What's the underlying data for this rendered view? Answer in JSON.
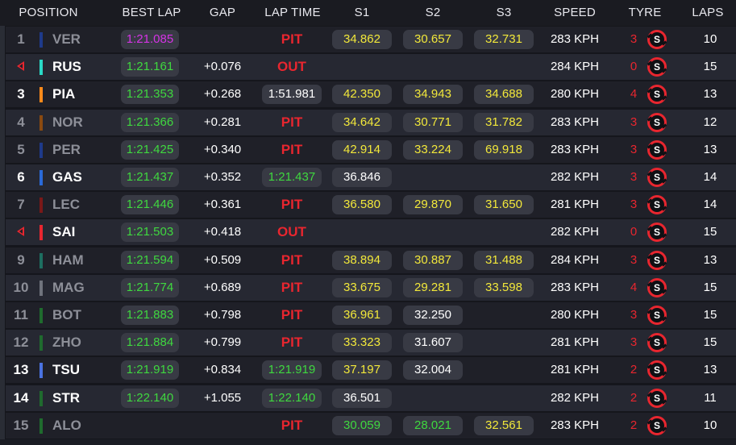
{
  "headers": {
    "position": "POSITION",
    "best_lap": "BEST LAP",
    "gap": "GAP",
    "lap_time": "LAP TIME",
    "s1": "S1",
    "s2": "S2",
    "s3": "S3",
    "speed": "SPEED",
    "tyre": "TYRE",
    "laps": "LAPS"
  },
  "colors": {
    "purple": "#d633e6",
    "green": "#3fd83f",
    "yellow": "#f2e83a",
    "white": "#ffffff",
    "red": "#e8262f",
    "dim": "#8d8f98"
  },
  "rows": [
    {
      "pos": "1",
      "marker": "bar",
      "team_color": "#1e3a8a",
      "driver": "VER",
      "dim": true,
      "best": "1:21.085",
      "best_c": "purple",
      "gap": "",
      "lap": "PIT",
      "lap_kind": "pit",
      "s1": "34.862",
      "s1_c": "yellow",
      "s2": "30.657",
      "s2_c": "yellow",
      "s3": "32.731",
      "s3_c": "yellow",
      "speed": "283 KPH",
      "tyre_age": "3",
      "tyre": "S",
      "laps": "10"
    },
    {
      "pos": "",
      "marker": "arrow",
      "team_color": "#2ad9c6",
      "driver": "RUS",
      "dim": false,
      "best": "1:21.161",
      "best_c": "green",
      "gap": "+0.076",
      "lap": "OUT",
      "lap_kind": "pit",
      "s1": "",
      "s1_c": "white",
      "s2": "",
      "s2_c": "white",
      "s3": "",
      "s3_c": "white",
      "speed": "284 KPH",
      "tyre_age": "0",
      "tyre": "S",
      "laps": "15"
    },
    {
      "pos": "3",
      "marker": "bar",
      "team_color": "#ff8a1a",
      "driver": "PIA",
      "dim": false,
      "best": "1:21.353",
      "best_c": "green",
      "gap": "+0.268",
      "lap": "1:51.981",
      "lap_kind": "white",
      "s1": "42.350",
      "s1_c": "yellow",
      "s2": "34.943",
      "s2_c": "yellow",
      "s3": "34.688",
      "s3_c": "yellow",
      "speed": "280 KPH",
      "tyre_age": "4",
      "tyre": "S",
      "laps": "13"
    },
    {
      "pos": "4",
      "marker": "bar",
      "team_color": "#8a4a10",
      "driver": "NOR",
      "dim": true,
      "best": "1:21.366",
      "best_c": "green",
      "gap": "+0.281",
      "lap": "PIT",
      "lap_kind": "pit",
      "s1": "34.642",
      "s1_c": "yellow",
      "s2": "30.771",
      "s2_c": "yellow",
      "s3": "31.782",
      "s3_c": "yellow",
      "speed": "283 KPH",
      "tyre_age": "3",
      "tyre": "S",
      "laps": "12"
    },
    {
      "pos": "5",
      "marker": "bar",
      "team_color": "#1e3a8a",
      "driver": "PER",
      "dim": true,
      "best": "1:21.425",
      "best_c": "green",
      "gap": "+0.340",
      "lap": "PIT",
      "lap_kind": "pit",
      "s1": "42.914",
      "s1_c": "yellow",
      "s2": "33.224",
      "s2_c": "yellow",
      "s3": "69.918",
      "s3_c": "yellow",
      "speed": "283 KPH",
      "tyre_age": "3",
      "tyre": "S",
      "laps": "13"
    },
    {
      "pos": "6",
      "marker": "bar",
      "team_color": "#2a6ad8",
      "driver": "GAS",
      "dim": false,
      "best": "1:21.437",
      "best_c": "green",
      "gap": "+0.352",
      "lap": "1:21.437",
      "lap_kind": "green",
      "s1": "36.846",
      "s1_c": "white",
      "s2": "",
      "s2_c": "white",
      "s3": "",
      "s3_c": "white",
      "speed": "282 KPH",
      "tyre_age": "3",
      "tyre": "S",
      "laps": "14"
    },
    {
      "pos": "7",
      "marker": "bar",
      "team_color": "#7a1818",
      "driver": "LEC",
      "dim": true,
      "best": "1:21.446",
      "best_c": "green",
      "gap": "+0.361",
      "lap": "PIT",
      "lap_kind": "pit",
      "s1": "36.580",
      "s1_c": "yellow",
      "s2": "29.870",
      "s2_c": "yellow",
      "s3": "31.650",
      "s3_c": "yellow",
      "speed": "281 KPH",
      "tyre_age": "3",
      "tyre": "S",
      "laps": "14"
    },
    {
      "pos": "",
      "marker": "arrow",
      "team_color": "#e8262f",
      "driver": "SAI",
      "dim": false,
      "best": "1:21.503",
      "best_c": "green",
      "gap": "+0.418",
      "lap": "OUT",
      "lap_kind": "pit",
      "s1": "",
      "s1_c": "white",
      "s2": "",
      "s2_c": "white",
      "s3": "",
      "s3_c": "white",
      "speed": "282 KPH",
      "tyre_age": "0",
      "tyre": "S",
      "laps": "15"
    },
    {
      "pos": "9",
      "marker": "bar",
      "team_color": "#1d6e60",
      "driver": "HAM",
      "dim": true,
      "best": "1:21.594",
      "best_c": "green",
      "gap": "+0.509",
      "lap": "PIT",
      "lap_kind": "pit",
      "s1": "38.894",
      "s1_c": "yellow",
      "s2": "30.887",
      "s2_c": "yellow",
      "s3": "31.488",
      "s3_c": "yellow",
      "speed": "284 KPH",
      "tyre_age": "3",
      "tyre": "S",
      "laps": "13"
    },
    {
      "pos": "10",
      "marker": "bar",
      "team_color": "#6f737c",
      "driver": "MAG",
      "dim": true,
      "best": "1:21.774",
      "best_c": "green",
      "gap": "+0.689",
      "lap": "PIT",
      "lap_kind": "pit",
      "s1": "33.675",
      "s1_c": "yellow",
      "s2": "29.281",
      "s2_c": "yellow",
      "s3": "33.598",
      "s3_c": "yellow",
      "speed": "283 KPH",
      "tyre_age": "4",
      "tyre": "S",
      "laps": "15"
    },
    {
      "pos": "11",
      "marker": "bar",
      "team_color": "#1f6b2e",
      "driver": "BOT",
      "dim": true,
      "best": "1:21.883",
      "best_c": "green",
      "gap": "+0.798",
      "lap": "PIT",
      "lap_kind": "pit",
      "s1": "36.961",
      "s1_c": "yellow",
      "s2": "32.250",
      "s2_c": "white",
      "s3": "",
      "s3_c": "white",
      "speed": "280 KPH",
      "tyre_age": "3",
      "tyre": "S",
      "laps": "15"
    },
    {
      "pos": "12",
      "marker": "bar",
      "team_color": "#1f6b2e",
      "driver": "ZHO",
      "dim": true,
      "best": "1:21.884",
      "best_c": "green",
      "gap": "+0.799",
      "lap": "PIT",
      "lap_kind": "pit",
      "s1": "33.323",
      "s1_c": "yellow",
      "s2": "31.607",
      "s2_c": "white",
      "s3": "",
      "s3_c": "white",
      "speed": "281 KPH",
      "tyre_age": "3",
      "tyre": "S",
      "laps": "15"
    },
    {
      "pos": "13",
      "marker": "bar",
      "team_color": "#4a72e0",
      "driver": "TSU",
      "dim": false,
      "best": "1:21.919",
      "best_c": "green",
      "gap": "+0.834",
      "lap": "1:21.919",
      "lap_kind": "green",
      "s1": "37.197",
      "s1_c": "yellow",
      "s2": "32.004",
      "s2_c": "white",
      "s3": "",
      "s3_c": "white",
      "speed": "281 KPH",
      "tyre_age": "2",
      "tyre": "S",
      "laps": "13"
    },
    {
      "pos": "14",
      "marker": "bar",
      "team_color": "#1f6b2e",
      "driver": "STR",
      "dim": false,
      "best": "1:22.140",
      "best_c": "green",
      "gap": "+1.055",
      "lap": "1:22.140",
      "lap_kind": "green",
      "s1": "36.501",
      "s1_c": "white",
      "s2": "",
      "s2_c": "white",
      "s3": "",
      "s3_c": "white",
      "speed": "282 KPH",
      "tyre_age": "2",
      "tyre": "S",
      "laps": "11"
    },
    {
      "pos": "15",
      "marker": "bar",
      "team_color": "#1f6b2e",
      "driver": "ALO",
      "dim": true,
      "best": "",
      "best_c": "green",
      "gap": "",
      "lap": "PIT",
      "lap_kind": "pit",
      "s1": "30.059",
      "s1_c": "green",
      "s2": "28.021",
      "s2_c": "green",
      "s3": "32.561",
      "s3_c": "yellow",
      "speed": "283 KPH",
      "tyre_age": "2",
      "tyre": "S",
      "laps": "10"
    }
  ]
}
